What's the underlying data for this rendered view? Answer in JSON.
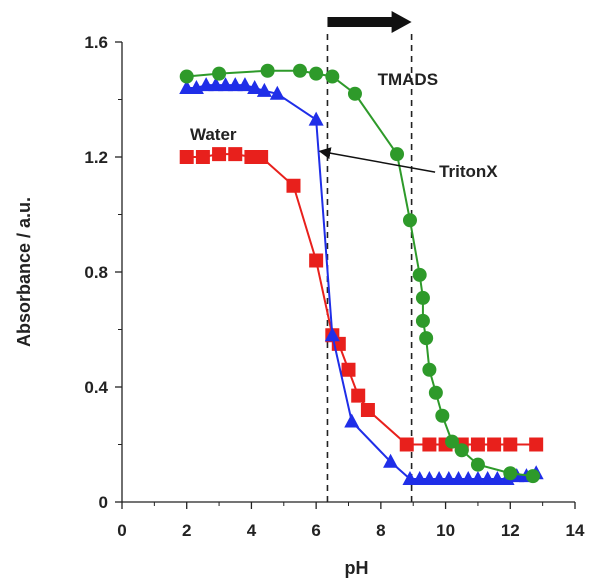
{
  "chart_data": {
    "type": "scatter",
    "title": "",
    "xlabel": "pH",
    "ylabel": "Absorbance / a.u.",
    "xlim": [
      0,
      14
    ],
    "ylim": [
      0,
      1.6
    ],
    "xticks": [
      "0",
      "2",
      "4",
      "6",
      "8",
      "10",
      "12",
      "14"
    ],
    "yticks": [
      "0",
      "0.4",
      "0.8",
      "1.2",
      "1.6"
    ],
    "grid": false,
    "legend": "none",
    "reference_lines_x": [
      6.35,
      8.95
    ],
    "series": [
      {
        "name": "Water",
        "marker": "square",
        "color": "#e8201c",
        "x": [
          2.0,
          2.5,
          3.0,
          3.5,
          4.0,
          4.3,
          5.3,
          6.0,
          6.5,
          6.7,
          7.0,
          7.3,
          7.6,
          8.8,
          9.5,
          10.0,
          10.5,
          11.0,
          11.5,
          12.0,
          12.8
        ],
        "y": [
          1.2,
          1.2,
          1.21,
          1.21,
          1.2,
          1.2,
          1.1,
          0.84,
          0.58,
          0.55,
          0.46,
          0.37,
          0.32,
          0.2,
          0.2,
          0.2,
          0.2,
          0.2,
          0.2,
          0.2,
          0.2
        ]
      },
      {
        "name": "TritonX",
        "marker": "triangle",
        "color": "#1f2ee8",
        "x": [
          2.0,
          2.3,
          2.6,
          2.9,
          3.2,
          3.5,
          3.8,
          4.1,
          4.4,
          4.8,
          6.0,
          6.5,
          7.1,
          8.3,
          8.9,
          9.2,
          9.5,
          9.8,
          10.1,
          10.4,
          10.7,
          11.0,
          11.3,
          11.6,
          11.9,
          12.2,
          12.5,
          12.8
        ],
        "y": [
          1.44,
          1.44,
          1.45,
          1.45,
          1.45,
          1.45,
          1.45,
          1.44,
          1.43,
          1.42,
          1.33,
          0.58,
          0.28,
          0.14,
          0.08,
          0.08,
          0.08,
          0.08,
          0.08,
          0.08,
          0.08,
          0.08,
          0.08,
          0.08,
          0.08,
          0.09,
          0.09,
          0.1
        ]
      },
      {
        "name": "TMADS",
        "marker": "circle",
        "color": "#2e9a2a",
        "x": [
          2.0,
          3.0,
          4.5,
          5.5,
          6.0,
          6.5,
          7.2,
          8.5,
          8.9,
          9.2,
          9.3,
          9.3,
          9.4,
          9.5,
          9.7,
          9.9,
          10.2,
          10.5,
          11.0,
          12.0,
          12.7
        ],
        "y": [
          1.48,
          1.49,
          1.5,
          1.5,
          1.49,
          1.48,
          1.42,
          1.21,
          0.98,
          0.79,
          0.71,
          0.63,
          0.57,
          0.46,
          0.38,
          0.3,
          0.21,
          0.18,
          0.13,
          0.1,
          0.09
        ]
      }
    ],
    "annotations": [
      {
        "text": "Water",
        "x": 2.1,
        "y": 1.26
      },
      {
        "text": "TMADS",
        "x": 7.9,
        "y": 1.45
      },
      {
        "text": "TritonX",
        "x": 9.8,
        "y": 1.13,
        "arrow_to": [
          6.05,
          1.22
        ]
      }
    ],
    "arrow_indicator": {
      "from_x": 6.35,
      "to_x": 8.95,
      "y": 1.7
    }
  }
}
